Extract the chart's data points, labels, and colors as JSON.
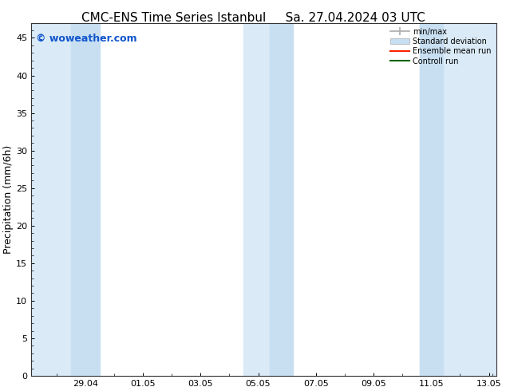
{
  "title_left": "CMC-ENS Time Series Istanbul",
  "title_right": "Sa. 27.04.2024 03 UTC",
  "ylabel": "Precipitation (mm/6h)",
  "watermark": "© woweather.com",
  "watermark_color": "#1155cc",
  "background_color": "#ffffff",
  "plot_bg_color": "#ffffff",
  "ylim": [
    0,
    47
  ],
  "yticks": [
    0,
    5,
    10,
    15,
    20,
    25,
    30,
    35,
    40,
    45
  ],
  "xlim_start": 27.125,
  "xlim_end": 43.25,
  "xtick_labels": [
    "29.04",
    "01.05",
    "03.05",
    "05.05",
    "07.05",
    "09.05",
    "11.05",
    "13.05"
  ],
  "xtick_positions": [
    29.0,
    31.0,
    33.0,
    35.0,
    37.0,
    39.0,
    41.0,
    43.0
  ],
  "shaded_color_outer": "#daeaf7",
  "shaded_color_inner": "#c8dff2",
  "shaded_bands_outer": [
    [
      27.125,
      28.75
    ],
    [
      28.75,
      29.5
    ],
    [
      34.5,
      35.5
    ],
    [
      35.5,
      36.25
    ],
    [
      40.5,
      41.5
    ],
    [
      41.5,
      43.25
    ]
  ],
  "legend_labels": [
    "min/max",
    "Standard deviation",
    "Ensemble mean run",
    "Controll run"
  ],
  "legend_colors_line": [
    "#999999",
    "#bbbbbb",
    "#ff0000",
    "#008000"
  ],
  "title_fontsize": 11,
  "axis_fontsize": 9,
  "tick_fontsize": 8,
  "watermark_fontsize": 9
}
